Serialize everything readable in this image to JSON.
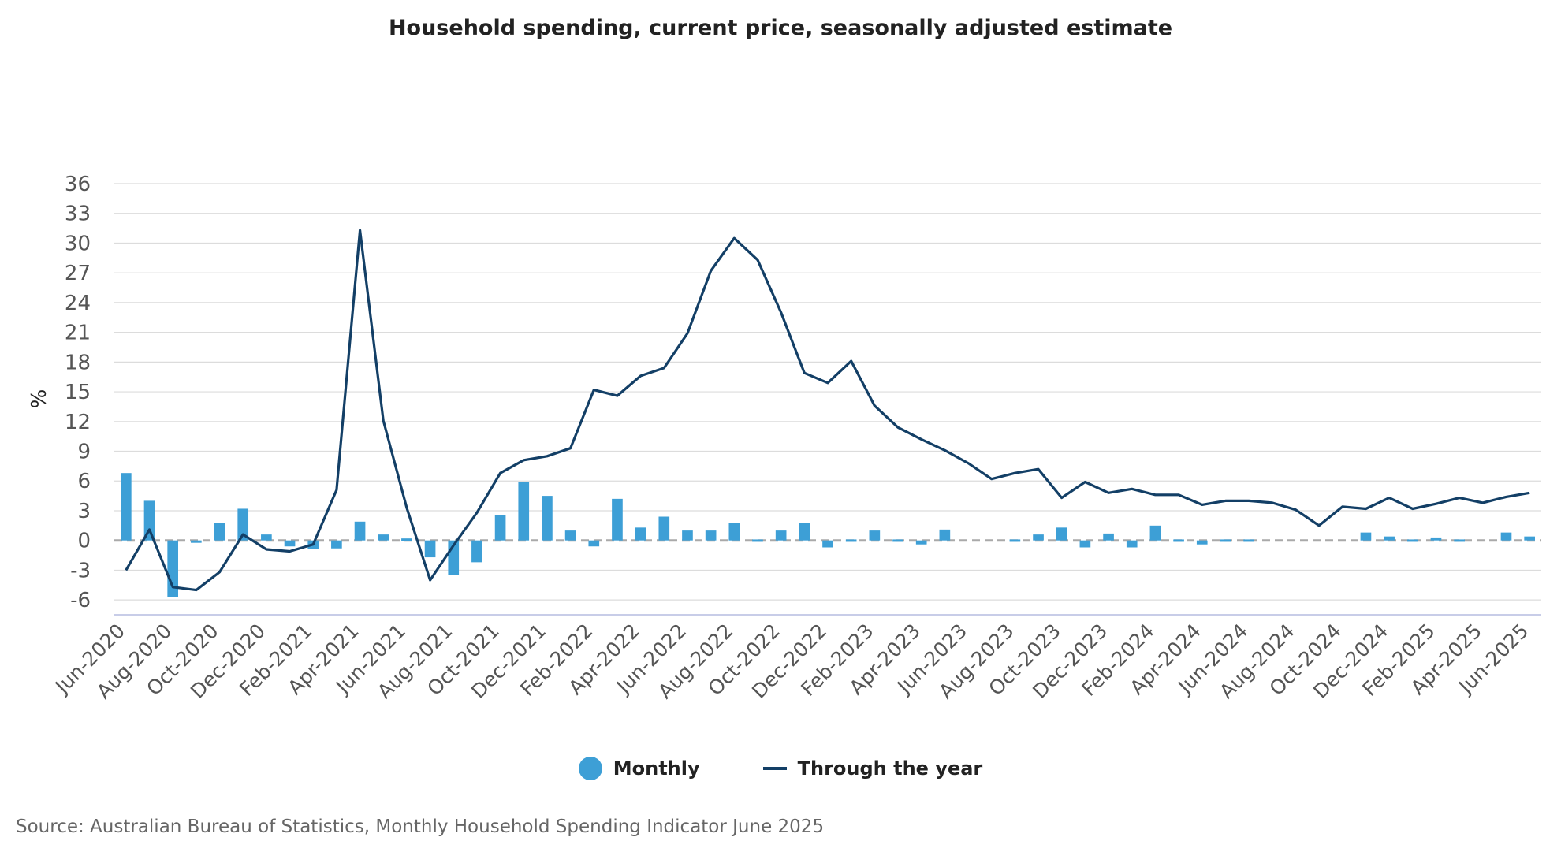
{
  "chart_data": {
    "type": "bar+line",
    "title": "Household spending, current price, seasonally adjusted estimate",
    "ylabel": "%",
    "xlabel": "",
    "ylim": [
      -7.5,
      36
    ],
    "yticks": [
      36,
      33,
      30,
      27,
      24,
      21,
      18,
      15,
      12,
      9,
      6,
      3,
      0,
      -3,
      -6
    ],
    "categories": [
      "Jun-2020",
      "Jul-2020",
      "Aug-2020",
      "Sep-2020",
      "Oct-2020",
      "Nov-2020",
      "Dec-2020",
      "Jan-2021",
      "Feb-2021",
      "Mar-2021",
      "Apr-2021",
      "May-2021",
      "Jun-2021",
      "Jul-2021",
      "Aug-2021",
      "Sep-2021",
      "Oct-2021",
      "Nov-2021",
      "Dec-2021",
      "Jan-2022",
      "Feb-2022",
      "Mar-2022",
      "Apr-2022",
      "May-2022",
      "Jun-2022",
      "Jul-2022",
      "Aug-2022",
      "Sep-2022",
      "Oct-2022",
      "Nov-2022",
      "Dec-2022",
      "Jan-2023",
      "Feb-2023",
      "Mar-2023",
      "Apr-2023",
      "May-2023",
      "Jun-2023",
      "Jul-2023",
      "Aug-2023",
      "Sep-2023",
      "Oct-2023",
      "Nov-2023",
      "Dec-2023",
      "Jan-2024",
      "Feb-2024",
      "Mar-2024",
      "Apr-2024",
      "May-2024",
      "Jun-2024",
      "Jul-2024",
      "Aug-2024",
      "Sep-2024",
      "Oct-2024",
      "Nov-2024",
      "Dec-2024",
      "Jan-2025",
      "Feb-2025",
      "Mar-2025",
      "Apr-2025",
      "May-2025",
      "Jun-2025"
    ],
    "xtick_labels": [
      "Jun-2020",
      "Aug-2020",
      "Oct-2020",
      "Dec-2020",
      "Feb-2021",
      "Apr-2021",
      "Jun-2021",
      "Aug-2021",
      "Oct-2021",
      "Dec-2021",
      "Feb-2022",
      "Apr-2022",
      "Jun-2022",
      "Aug-2022",
      "Oct-2022",
      "Dec-2022",
      "Feb-2023",
      "Apr-2023",
      "Jun-2023",
      "Aug-2023",
      "Oct-2023",
      "Dec-2023",
      "Feb-2024",
      "Apr-2024",
      "Jun-2024",
      "Aug-2024",
      "Oct-2024",
      "Dec-2024",
      "Feb-2025",
      "Apr-2025",
      "Jun-2025"
    ],
    "series": [
      {
        "name": "Monthly",
        "kind": "bar",
        "color": "#3d9fd6",
        "values": [
          6.8,
          4.0,
          -5.7,
          -0.2,
          1.8,
          3.2,
          0.6,
          -0.6,
          -0.9,
          -0.8,
          1.9,
          0.6,
          0.2,
          -1.7,
          -3.5,
          -2.2,
          2.6,
          5.9,
          4.5,
          1.0,
          -0.6,
          4.2,
          1.3,
          2.4,
          1.0,
          1.0,
          1.8,
          0.1,
          1.0,
          1.8,
          -0.7,
          0.1,
          1.0,
          0.1,
          -0.4,
          1.1,
          0.0,
          0.0,
          0.1,
          0.6,
          1.3,
          -0.7,
          0.7,
          -0.7,
          1.5,
          0.1,
          -0.4,
          0.1,
          0.1,
          0.0,
          0.0,
          0.0,
          0.0,
          0.8,
          0.4,
          0.1,
          0.3,
          0.1,
          0.0,
          0.8,
          0.4
        ]
      },
      {
        "name": "Through the year",
        "kind": "line",
        "color": "#133f66",
        "values": [
          -3.0,
          1.1,
          -4.7,
          -5.0,
          -3.2,
          0.6,
          -0.9,
          -1.1,
          -0.4,
          5.1,
          31.3,
          12.1,
          3.3,
          -4.0,
          -0.5,
          2.8,
          6.8,
          8.1,
          8.5,
          9.3,
          15.2,
          14.6,
          16.6,
          17.4,
          20.9,
          27.2,
          30.5,
          28.3,
          23.0,
          16.9,
          15.9,
          18.1,
          13.6,
          11.4,
          10.2,
          9.1,
          7.8,
          6.2,
          6.8,
          7.2,
          4.3,
          5.9,
          4.8,
          5.2,
          4.6,
          4.6,
          3.6,
          4.0,
          4.0,
          3.8,
          3.1,
          1.5,
          3.4,
          3.2,
          4.3,
          3.2,
          3.7,
          4.3,
          3.8,
          4.4,
          4.8
        ]
      }
    ],
    "legend": "bottom-center"
  },
  "legend": {
    "monthly": "Monthly",
    "through_year": "Through the year"
  },
  "source": "Source: Australian Bureau of Statistics, Monthly Household Spending Indicator June 2025"
}
